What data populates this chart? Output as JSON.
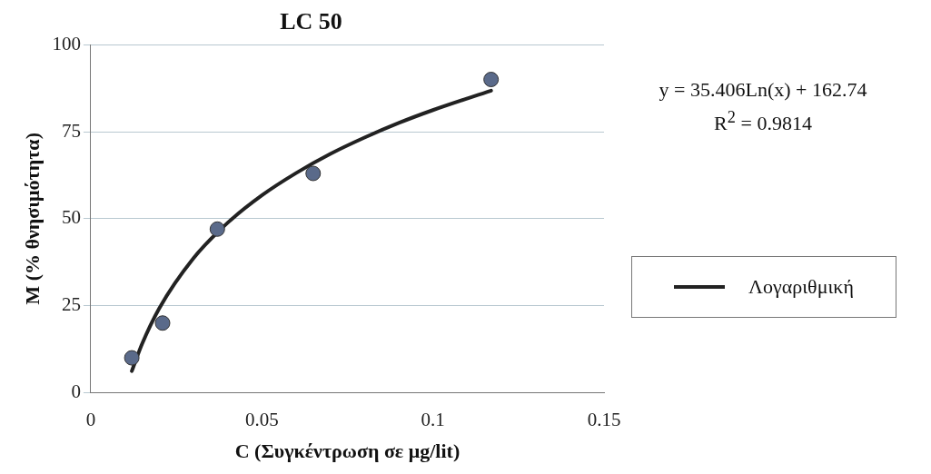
{
  "chart_data": {
    "type": "scatter",
    "title": "LC 50",
    "xlabel": "C (Συγκέντρωση σε μg/lit)",
    "ylabel": "M (% θνησιμότητα)",
    "series": [
      {
        "color": "#5a6a8a",
        "x": [
          0.012,
          0.021,
          0.037,
          0.065,
          0.117
        ],
        "values": [
          10,
          20,
          47,
          63,
          90
        ]
      },
      {
        "type": "line",
        "name": "Λογαριθμική",
        "color": "#222222",
        "marker": "none",
        "x": [
          0.012,
          0.015,
          0.02,
          0.03,
          0.04,
          0.05,
          0.06,
          0.07,
          0.08,
          0.09,
          0.1,
          0.117
        ],
        "values": [
          6.2,
          14,
          24.2,
          38.6,
          48.8,
          56.7,
          63.1,
          68.6,
          73.3,
          77.5,
          81.2,
          86.8
        ]
      }
    ],
    "xlim": [
      0,
      0.15
    ],
    "xticks": [
      0,
      0.05,
      0.1,
      0.15
    ],
    "ylim": [
      0,
      100
    ],
    "yticks": [
      0,
      25,
      50,
      75,
      100
    ],
    "grid": "y",
    "legend": "right",
    "marker": "circle",
    "annotations": [
      "y = 35.406Ln(x) + 162.74",
      "R$^{2}$ = 0.9814"
    ]
  }
}
